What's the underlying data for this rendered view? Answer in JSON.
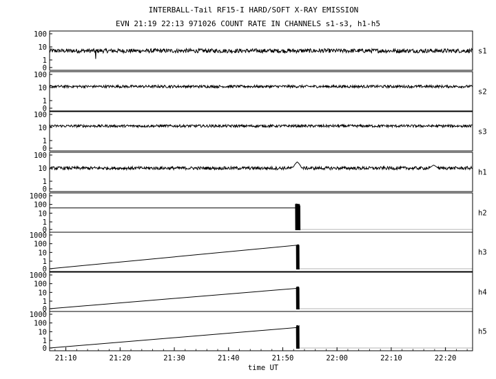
{
  "figure": {
    "title_line1": "INTERBALL-Tail RF15-I HARD/SOFT X-RAY EMISSION",
    "title_line2": "EVN 21:19 22:13 971026  COUNT RATE IN CHANNELS s1-s3, h1-h5",
    "x_axis_label": "time UT"
  },
  "chart_data": {
    "type": "line",
    "title": "INTERBALL-Tail RF15-I HARD/SOFT X-RAY EMISSION",
    "subtitle": "EVN 21:19 22:13 971026  COUNT RATE IN CHANNELS s1-s3, h1-h5",
    "xlabel": "time UT",
    "x_ticks": [
      "21:10",
      "21:20",
      "21:30",
      "21:40",
      "21:50",
      "22:00",
      "22:10",
      "22:20"
    ],
    "xlim": [
      "21:07",
      "22:25"
    ],
    "y_scale": "log",
    "grid": false,
    "panels": [
      {
        "channel": "s1",
        "y_ticks": [
          "100",
          "10",
          "1",
          "0"
        ],
        "baseline": 5,
        "noise": 0.16,
        "dips": [
          {
            "t": "21:15:30",
            "v": 1.2
          }
        ]
      },
      {
        "channel": "s2",
        "y_ticks": [
          "100",
          "10",
          "1",
          "0"
        ],
        "baseline": 12,
        "noise": 0.1,
        "dips": []
      },
      {
        "channel": "s3",
        "y_ticks": [
          "100",
          "10",
          "1",
          "0"
        ],
        "baseline": 13,
        "noise": 0.1,
        "dips": []
      },
      {
        "channel": "h1",
        "y_ticks": [
          "100",
          "10",
          "1",
          "0"
        ],
        "baseline": 10,
        "noise": 0.12,
        "bumps": [
          {
            "t": "21:52:40",
            "v": 30
          },
          {
            "t": "22:17:50",
            "v": 17
          }
        ]
      },
      {
        "channel": "h2",
        "y_ticks": [
          "1000",
          "100",
          "10",
          "1",
          "0"
        ],
        "level_line": 40,
        "level_line_end": "21:52:20",
        "burst": {
          "start": "21:52:20",
          "end": "21:53:10",
          "peak": 90
        }
      },
      {
        "channel": "h3",
        "y_ticks": [
          "1000",
          "100",
          "10",
          "1",
          "0"
        ],
        "burst": {
          "start": "21:52:30",
          "end": "21:53:00",
          "peak": 60
        }
      },
      {
        "channel": "h4",
        "y_ticks": [
          "1000",
          "100",
          "10",
          "1",
          "0"
        ],
        "burst": {
          "start": "21:52:30",
          "end": "21:53:00",
          "peak": 35
        }
      },
      {
        "channel": "h5",
        "y_ticks": [
          "1000",
          "100",
          "10",
          "1",
          "0"
        ],
        "burst": {
          "start": "21:52:30",
          "end": "21:53:00",
          "peak": 40
        }
      }
    ]
  }
}
